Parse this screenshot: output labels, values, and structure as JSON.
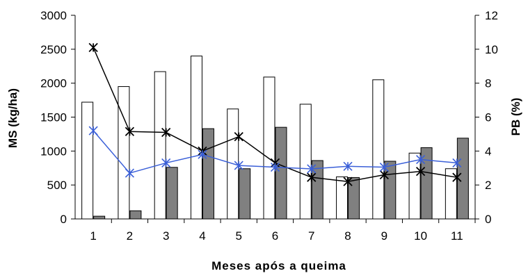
{
  "chart_data": {
    "type": "bar",
    "title": "",
    "xlabel": "Meses após a queima",
    "ylabel": "MS (kg/ha)",
    "y2label": "PB (%)",
    "categories": [
      "1",
      "2",
      "3",
      "4",
      "5",
      "6",
      "7",
      "8",
      "9",
      "10",
      "11"
    ],
    "ylim": [
      0,
      3000
    ],
    "yticks": [
      "0",
      "500",
      "1000",
      "1500",
      "2000",
      "2500",
      "3000"
    ],
    "y2lim": [
      0,
      12
    ],
    "y2ticks": [
      "0",
      "2",
      "4",
      "6",
      "8",
      "10",
      "12"
    ],
    "grid": false,
    "legend": "none",
    "series": [
      {
        "type": "bar",
        "axis": "left",
        "color": "#ffffff",
        "values": [
          1720,
          1950,
          2170,
          2400,
          1620,
          2090,
          1690,
          620,
          2050,
          970,
          740
        ]
      },
      {
        "type": "bar",
        "axis": "left",
        "color": "#808080",
        "values": [
          40,
          120,
          760,
          1330,
          740,
          1350,
          860,
          610,
          850,
          1050,
          1190
        ]
      },
      {
        "type": "line",
        "axis": "right",
        "color": "#000000",
        "marker": "x-star",
        "values": [
          10.1,
          5.15,
          5.1,
          4.0,
          4.85,
          3.3,
          2.45,
          2.2,
          2.6,
          2.8,
          2.45
        ]
      },
      {
        "type": "line",
        "axis": "right",
        "color": "#3a5fd8",
        "marker": "asterisk",
        "values": [
          5.2,
          2.7,
          3.3,
          3.8,
          3.15,
          3.05,
          2.95,
          3.1,
          3.05,
          3.5,
          3.3
        ]
      }
    ]
  }
}
